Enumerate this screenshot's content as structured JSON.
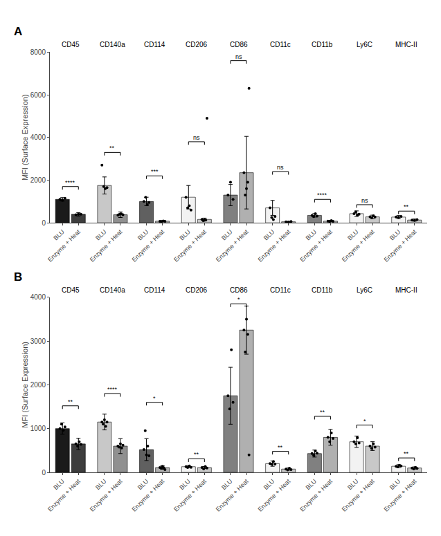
{
  "chart_data": [
    {
      "type": "bar",
      "title": "A",
      "ylabel": "MFI (Surface Expression)",
      "categories": [
        "CD45",
        "CD140a",
        "CD114",
        "CD206",
        "CD86",
        "CD11c",
        "CD11b",
        "Ly6C",
        "MHC-II"
      ],
      "series": [
        {
          "name": "BLU",
          "colors": [
            "#1a1a1a",
            "#c8c8c8",
            "#606060",
            "#f2f2f2",
            "#808080",
            "#f2f2f2",
            "#808080",
            "#f2f2f2",
            "#f2f2f2"
          ],
          "values": [
            1100,
            1750,
            1000,
            1200,
            1300,
            700,
            350,
            430,
            270
          ],
          "errors": [
            80,
            400,
            200,
            550,
            500,
            350,
            80,
            130,
            70
          ],
          "points": [
            [
              1100,
              1050,
              1150
            ],
            [
              2700,
              1700,
              1600,
              1650
            ],
            [
              1000,
              1200,
              850,
              950
            ],
            [
              1200,
              700,
              800,
              600
            ],
            [
              1300,
              1900,
              1100
            ],
            [
              700,
              250,
              150,
              300
            ],
            [
              350,
              290,
              430,
              310
            ],
            [
              430,
              510,
              360,
              400
            ],
            [
              270,
              250,
              300
            ]
          ]
        },
        {
          "name": "Enzyme + Heat",
          "colors": [
            "#3d3d3d",
            "#909090",
            "#b0b0b0",
            "#c8c8c8",
            "#b0b0b0",
            "#c8c8c8",
            "#b0b0b0",
            "#c8c8c8",
            "#c8c8c8"
          ],
          "values": [
            400,
            380,
            80,
            160,
            2350,
            50,
            80,
            280,
            130
          ],
          "errors": [
            80,
            130,
            20,
            60,
            1700,
            15,
            30,
            80,
            50
          ],
          "points": [
            [
              380,
              410,
              400
            ],
            [
              360,
              400,
              420,
              380
            ],
            [
              75,
              60,
              90,
              70
            ],
            [
              160,
              100,
              120,
              130,
              4900
            ],
            [
              2350,
              1300,
              1600,
              1900,
              6300
            ],
            [
              45,
              35,
              60
            ],
            [
              80,
              60,
              100,
              75
            ],
            [
              280,
              240,
              330,
              270
            ],
            [
              130,
              110,
              150
            ]
          ]
        }
      ],
      "sig_labels": [
        "****",
        "**",
        "***",
        "ns",
        "ns",
        "ns",
        "****",
        "ns",
        "**"
      ],
      "sig_heights": [
        1700,
        3300,
        2200,
        3800,
        7600,
        2400,
        1100,
        850,
        550
      ],
      "ylim": [
        0,
        8000
      ],
      "yticks": [
        0,
        2000,
        4000,
        6000,
        8000
      ],
      "grid": false
    },
    {
      "type": "bar",
      "title": "B",
      "ylabel": "MFI (Surface Expression)",
      "categories": [
        "CD45",
        "CD140a",
        "CD114",
        "CD206",
        "CD86",
        "CD11c",
        "CD11b",
        "Ly6C",
        "MHC-II"
      ],
      "series": [
        {
          "name": "BLU",
          "colors": [
            "#1a1a1a",
            "#c8c8c8",
            "#606060",
            "#f2f2f2",
            "#808080",
            "#f2f2f2",
            "#808080",
            "#f2f2f2",
            "#f2f2f2"
          ],
          "values": [
            1000,
            1150,
            520,
            130,
            1750,
            200,
            430,
            700,
            140
          ],
          "errors": [
            130,
            180,
            250,
            25,
            650,
            60,
            80,
            130,
            35
          ],
          "points": [
            [
              1000,
              1100,
              960,
              1040
            ],
            [
              1150,
              1100,
              1200,
              1050,
              1150
            ],
            [
              520,
              950,
              400,
              600,
              380
            ],
            [
              130,
              110,
              145,
              115
            ],
            [
              1750,
              1450,
              2800,
              1600
            ],
            [
              200,
              185,
              250,
              190
            ],
            [
              430,
              390,
              490,
              440
            ],
            [
              700,
              650,
              790,
              670
            ],
            [
              140,
              125,
              160,
              145
            ]
          ]
        },
        {
          "name": "Enzyme + Heat",
          "colors": [
            "#3d3d3d",
            "#909090",
            "#b0b0b0",
            "#c8c8c8",
            "#b0b0b0",
            "#c8c8c8",
            "#b0b0b0",
            "#c8c8c8",
            "#c8c8c8"
          ],
          "values": [
            650,
            600,
            110,
            110,
            3250,
            75,
            800,
            600,
            100
          ],
          "errors": [
            130,
            170,
            40,
            25,
            550,
            25,
            180,
            100,
            25
          ],
          "points": [
            [
              650,
              600,
              700,
              640
            ],
            [
              600,
              575,
              650,
              555,
              620
            ],
            [
              110,
              95,
              140,
              105,
              65
            ],
            [
              110,
              80,
              135,
              100
            ],
            [
              3250,
              2750,
              3500,
              3150,
              400
            ],
            [
              75,
              55,
              95,
              65
            ],
            [
              800,
              700,
              900,
              775
            ],
            [
              600,
              550,
              650,
              575
            ],
            [
              100,
              80,
              115,
              90
            ]
          ]
        }
      ],
      "sig_labels": [
        "**",
        "****",
        "*",
        "**",
        "*",
        "**",
        "**",
        "*",
        "**"
      ],
      "sig_heights": [
        1520,
        1800,
        1600,
        310,
        3850,
        480,
        1280,
        1080,
        330
      ],
      "ylim": [
        0,
        4000
      ],
      "yticks": [
        0,
        1000,
        2000,
        3000,
        4000
      ],
      "grid": false
    }
  ]
}
